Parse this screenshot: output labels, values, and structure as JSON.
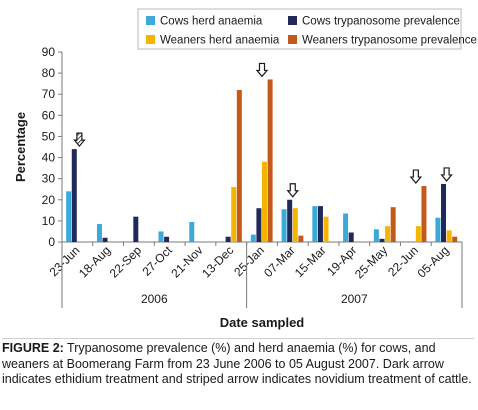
{
  "chart_data": {
    "type": "bar",
    "ylabel": "Percentage",
    "xlabel": "Date sampled",
    "ylim": [
      0,
      90
    ],
    "yticks": [
      0,
      10,
      20,
      30,
      40,
      50,
      60,
      70,
      80,
      90
    ],
    "grid": false,
    "legend_position": "top",
    "categories": [
      "23-Jun",
      "18-Aug",
      "22-Sep",
      "27-Oct",
      "21-Nov",
      "13-Dec",
      "25-Jan",
      "07-Mar",
      "15-Mar",
      "19-Apr",
      "25-May",
      "22-Jun",
      "05-Aug"
    ],
    "year_groups": [
      {
        "label": "2006",
        "from": 0,
        "to": 5
      },
      {
        "label": "2007",
        "from": 6,
        "to": 12
      }
    ],
    "series": [
      {
        "name": "Cows herd anaemia",
        "color": "#3da9d9",
        "values": [
          24,
          8.5,
          null,
          5,
          9.5,
          null,
          3.5,
          15.5,
          17,
          13.5,
          6,
          null,
          11.5
        ]
      },
      {
        "name": "Cows trypanosome prevalence",
        "color": "#1f2a5a",
        "values": [
          44,
          2,
          12,
          2.5,
          null,
          2.5,
          16,
          20,
          17,
          4.5,
          1.5,
          null,
          27.5
        ]
      },
      {
        "name": "Weaners herd anaemia",
        "color": "#f5b400",
        "values": [
          null,
          null,
          null,
          null,
          null,
          26,
          38,
          16,
          12,
          null,
          7.5,
          7.5,
          5.5
        ]
      },
      {
        "name": "Weaners trypanosome prevalence",
        "color": "#c45a1a",
        "values": [
          null,
          null,
          null,
          null,
          null,
          72,
          77,
          3,
          null,
          null,
          16.5,
          26.5,
          2.5
        ]
      }
    ],
    "treatment_markers": [
      {
        "category_index": 0,
        "type": "striped",
        "bar_value": 44
      },
      {
        "category_index": 6,
        "type": "dark",
        "bar_value": 77
      },
      {
        "category_index": 7,
        "type": "dark",
        "bar_value": 20
      },
      {
        "category_index": 11,
        "type": "dark",
        "bar_value": 26.5
      },
      {
        "category_index": 12,
        "type": "dark",
        "bar_value": 27.5
      }
    ]
  },
  "caption": {
    "label": "FIGURE 2:",
    "text": " Trypanosome prevalence (%) and herd anaemia (%) for cows, and weaners at Boomerang Farm from 23 June 2006 to 05 August 2007. Dark arrow indicates ethidium treatment and striped arrow indicates novidium treatment of cattle."
  }
}
